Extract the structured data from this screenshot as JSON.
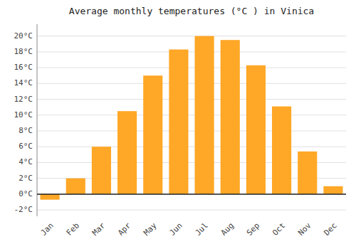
{
  "chart_data": {
    "type": "bar",
    "title": "Average monthly temperatures (°C ) in Vinica",
    "categories": [
      "Jan",
      "Feb",
      "Mar",
      "Apr",
      "May",
      "Jun",
      "Jul",
      "Aug",
      "Sep",
      "Oct",
      "Nov",
      "Dec"
    ],
    "values": [
      -0.7,
      2.0,
      6.0,
      10.5,
      15.0,
      18.3,
      20.0,
      19.5,
      16.3,
      11.1,
      5.4,
      1.0
    ],
    "color": "#FFA726",
    "ylim": [
      -2.8,
      21.5
    ],
    "yticks": [
      {
        "value": 20,
        "label": "20°C"
      },
      {
        "value": 18,
        "label": "18°C"
      },
      {
        "value": 16,
        "label": "16°C"
      },
      {
        "value": 14,
        "label": "14°C"
      },
      {
        "value": 12,
        "label": "12°C"
      },
      {
        "value": 10,
        "label": "10°C"
      },
      {
        "value": 8,
        "label": "8°C"
      },
      {
        "value": 6,
        "label": "6°C"
      },
      {
        "value": 4,
        "label": "4°C"
      },
      {
        "value": 2,
        "label": "2°C"
      },
      {
        "value": 0,
        "label": "0°C"
      },
      {
        "value": -2,
        "label": "-2°C"
      }
    ],
    "grid": true
  }
}
